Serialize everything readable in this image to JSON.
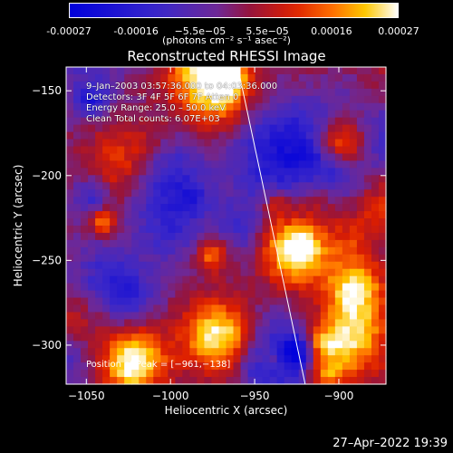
{
  "colorbar": {
    "ticks": [
      "-0.00027",
      "-0.00016",
      "−5.5e−05",
      "5.5e−05",
      "0.00016",
      "0.00027"
    ],
    "tick_values": [
      -0.00027,
      -0.00016,
      -5.5e-05,
      5.5e-05,
      0.00016,
      0.00027
    ],
    "units": "(photons cm⁻² s⁻¹ asec⁻²)",
    "range": [
      -0.00027,
      0.00027
    ]
  },
  "chart_data": {
    "type": "heatmap",
    "title": "Reconstructed RHESSI Image",
    "xlabel": "Heliocentric X (arcsec)",
    "ylabel": "Heliocentric Y (arcsec)",
    "xlim": [
      -1062,
      -872
    ],
    "ylim": [
      -323,
      -136
    ],
    "x_ticks": [
      -1050,
      -1000,
      -950,
      -900
    ],
    "y_ticks": [
      -150,
      -200,
      -250,
      -300
    ],
    "x_tick_labels": [
      "−1050",
      "−1000",
      "−950",
      "−900"
    ],
    "y_tick_labels": [
      "−150",
      "−200",
      "−250",
      "−300"
    ],
    "limb_line": [
      [
        -960,
        -136
      ],
      [
        -920,
        -323
      ]
    ],
    "peak": [
      -961,
      -138
    ]
  },
  "annotations": {
    "line1": "9–Jan–2003 03:57:36.000 to 04:03:36.000",
    "line2": "Detectors: 3F 4F 5F 6F 7F Atten 0",
    "line3": "Energy Range: 25.0 – 50.0 keV",
    "line4": "Clean     Total counts: 6.07E+03",
    "peak": "Position of Peak = [−961,−138]"
  },
  "footer": {
    "timestamp": "27–Apr–2022 19:39"
  }
}
